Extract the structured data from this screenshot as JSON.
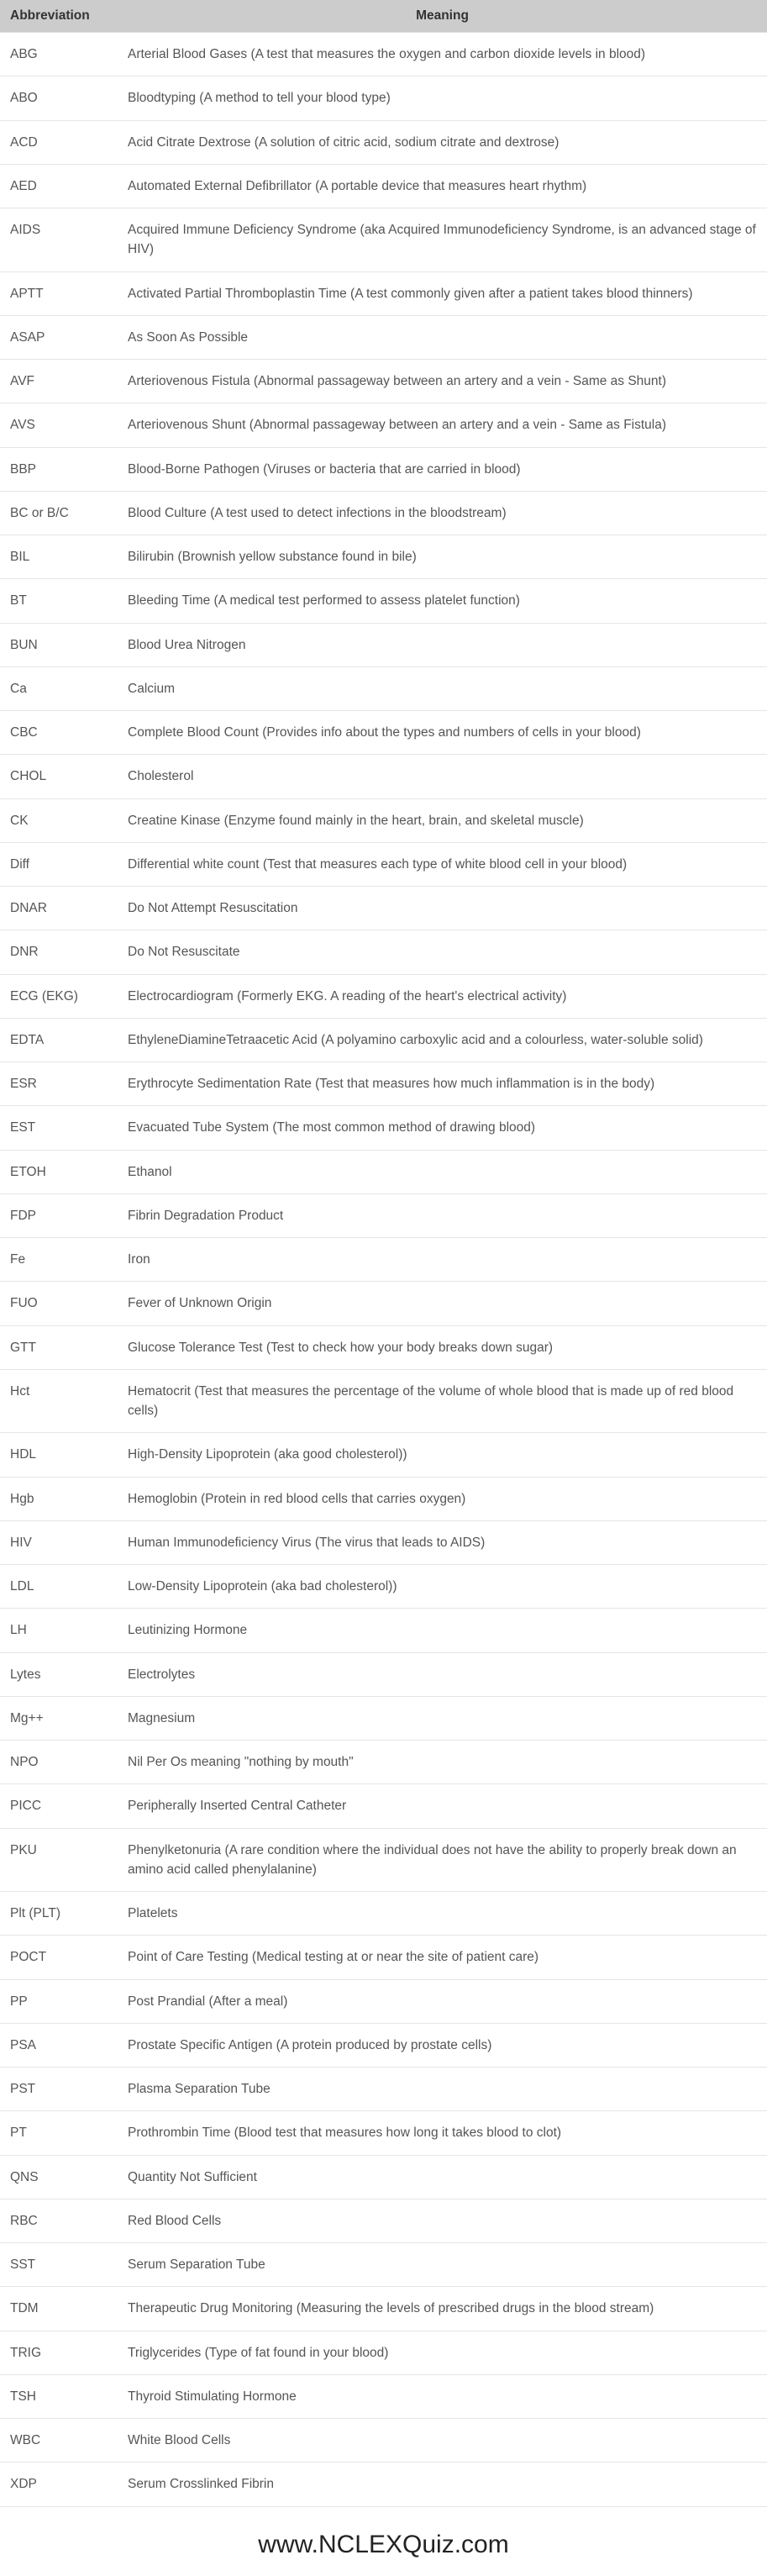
{
  "table": {
    "headers": {
      "abbr": "Abbreviation",
      "meaning": "Meaning"
    },
    "rows": [
      {
        "abbr": "ABG",
        "meaning": "Arterial Blood Gases (A test that measures the oxygen and carbon dioxide levels in blood)"
      },
      {
        "abbr": "ABO",
        "meaning": "Bloodtyping (A method to tell your blood type)"
      },
      {
        "abbr": "ACD",
        "meaning": "Acid Citrate Dextrose (A solution of citric acid, sodium citrate and dextrose)"
      },
      {
        "abbr": "AED",
        "meaning": "Automated External Defibrillator (A portable device that measures heart rhythm)"
      },
      {
        "abbr": "AIDS",
        "meaning": "Acquired Immune Deficiency Syndrome (aka Acquired Immunodeficiency Syndrome, is an advanced stage of HIV)"
      },
      {
        "abbr": "APTT",
        "meaning": "Activated Partial Thromboplastin Time (A test commonly given after a patient takes blood thinners)"
      },
      {
        "abbr": "ASAP",
        "meaning": "As Soon As Possible"
      },
      {
        "abbr": "AVF",
        "meaning": "Arteriovenous Fistula (Abnormal passageway between an artery and a vein - Same as Shunt)"
      },
      {
        "abbr": "AVS",
        "meaning": "Arteriovenous Shunt (Abnormal passageway between an artery and a vein - Same as Fistula)"
      },
      {
        "abbr": "BBP",
        "meaning": "Blood-Borne Pathogen (Viruses or bacteria that are carried in blood)"
      },
      {
        "abbr": "BC or B/C",
        "meaning": "Blood Culture (A test used to detect infections in the bloodstream)"
      },
      {
        "abbr": "BIL",
        "meaning": "Bilirubin (Brownish yellow substance found in bile)"
      },
      {
        "abbr": "BT",
        "meaning": "Bleeding Time (A medical test performed to assess platelet function)"
      },
      {
        "abbr": "BUN",
        "meaning": "Blood Urea Nitrogen"
      },
      {
        "abbr": "Ca",
        "meaning": "Calcium"
      },
      {
        "abbr": "CBC",
        "meaning": "Complete Blood Count (Provides info about the types and numbers of cells in your blood)"
      },
      {
        "abbr": "CHOL",
        "meaning": "Cholesterol"
      },
      {
        "abbr": "CK",
        "meaning": "Creatine Kinase (Enzyme found mainly in the heart, brain, and skeletal muscle)"
      },
      {
        "abbr": "Diff",
        "meaning": "Differential white count (Test that measures each type of white blood cell in your blood)"
      },
      {
        "abbr": "DNAR",
        "meaning": "Do Not Attempt Resuscitation"
      },
      {
        "abbr": "DNR",
        "meaning": "Do Not Resuscitate"
      },
      {
        "abbr": "ECG (EKG)",
        "meaning": "Electrocardiogram (Formerly EKG. A reading of the heart's electrical activity)"
      },
      {
        "abbr": "EDTA",
        "meaning": "EthyleneDiamineTetraacetic Acid (A polyamino carboxylic acid and a colourless, water-soluble solid)"
      },
      {
        "abbr": "ESR",
        "meaning": "Erythrocyte Sedimentation Rate (Test that measures how much inflammation is in the body)"
      },
      {
        "abbr": "EST",
        "meaning": "Evacuated Tube System (The most common method of drawing blood)"
      },
      {
        "abbr": "ETOH",
        "meaning": "Ethanol"
      },
      {
        "abbr": "FDP",
        "meaning": "Fibrin Degradation Product"
      },
      {
        "abbr": "Fe",
        "meaning": "Iron"
      },
      {
        "abbr": "FUO",
        "meaning": "Fever of Unknown Origin"
      },
      {
        "abbr": "GTT",
        "meaning": "Glucose Tolerance Test (Test to check how your body breaks down sugar)"
      },
      {
        "abbr": "Hct",
        "meaning": "Hematocrit (Test that measures the percentage of the volume of whole blood that is made up of red blood cells)"
      },
      {
        "abbr": "HDL",
        "meaning": "High-Density Lipoprotein (aka good cholesterol))"
      },
      {
        "abbr": "Hgb",
        "meaning": "Hemoglobin (Protein in red blood cells that carries oxygen)"
      },
      {
        "abbr": "HIV",
        "meaning": "Human Immunodeficiency Virus (The virus that leads to AIDS)"
      },
      {
        "abbr": "LDL",
        "meaning": "Low-Density Lipoprotein (aka bad cholesterol))"
      },
      {
        "abbr": "LH",
        "meaning": "Leutinizing Hormone"
      },
      {
        "abbr": "Lytes",
        "meaning": "Electrolytes"
      },
      {
        "abbr": "Mg++",
        "meaning": "Magnesium"
      },
      {
        "abbr": "NPO",
        "meaning": "Nil Per Os meaning \"nothing by mouth\""
      },
      {
        "abbr": "PICC",
        "meaning": "Peripherally Inserted Central Catheter"
      },
      {
        "abbr": "PKU",
        "meaning": "Phenylketonuria (A rare condition where the individual does not have the ability to properly break down an amino acid called phenylalanine)"
      },
      {
        "abbr": "Plt (PLT)",
        "meaning": "Platelets"
      },
      {
        "abbr": "POCT",
        "meaning": "Point of Care Testing (Medical testing at or near the site of patient care)"
      },
      {
        "abbr": "PP",
        "meaning": "Post Prandial (After a meal)"
      },
      {
        "abbr": "PSA",
        "meaning": "Prostate Specific Antigen (A protein produced by prostate cells)"
      },
      {
        "abbr": "PST",
        "meaning": "Plasma Separation Tube"
      },
      {
        "abbr": "PT",
        "meaning": "Prothrombin Time (Blood test that measures how long it takes blood to clot)"
      },
      {
        "abbr": "QNS",
        "meaning": "Quantity Not Sufficient"
      },
      {
        "abbr": "RBC",
        "meaning": "Red Blood Cells"
      },
      {
        "abbr": "SST",
        "meaning": "Serum Separation Tube"
      },
      {
        "abbr": "TDM",
        "meaning": "Therapeutic Drug Monitoring (Measuring the levels of prescribed drugs in the blood stream)"
      },
      {
        "abbr": "TRIG",
        "meaning": "Triglycerides (Type of fat found in your blood)"
      },
      {
        "abbr": "TSH",
        "meaning": "Thyroid Stimulating Hormone"
      },
      {
        "abbr": "WBC",
        "meaning": "White Blood Cells"
      },
      {
        "abbr": "XDP",
        "meaning": "Serum Crosslinked Fibrin"
      }
    ]
  },
  "footer": "www.NCLEXQuiz.com"
}
